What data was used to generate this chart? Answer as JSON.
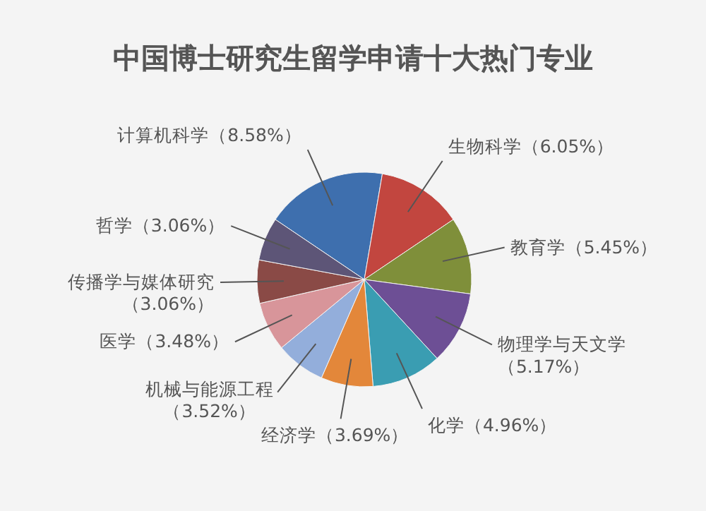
{
  "chart_data": {
    "type": "pie",
    "title": "中国博士研究生留学申请十大热门专业",
    "categories": [
      "计算机科学",
      "生物科学",
      "教育学",
      "物理学与天文学",
      "化学",
      "经济学",
      "机械与能源工程",
      "医学",
      "传播学与媒体研究",
      "哲学"
    ],
    "values": [
      8.58,
      6.05,
      5.45,
      5.17,
      4.96,
      3.69,
      3.52,
      3.48,
      3.06,
      3.06
    ],
    "value_labels": [
      "（8.58%）",
      "（6.05%）",
      "（5.45%）",
      "（5.17%）",
      "（4.96%）",
      "（3.69%）",
      "（3.52%）",
      "（3.48%）",
      "（3.06%）",
      "（3.06%）"
    ],
    "colors": [
      "#3e6fae",
      "#c2463f",
      "#7f8f3a",
      "#6d4f95",
      "#3a9db2",
      "#e3873a",
      "#93aedb",
      "#d8959a",
      "#8a4a46",
      "#5d5577"
    ]
  }
}
